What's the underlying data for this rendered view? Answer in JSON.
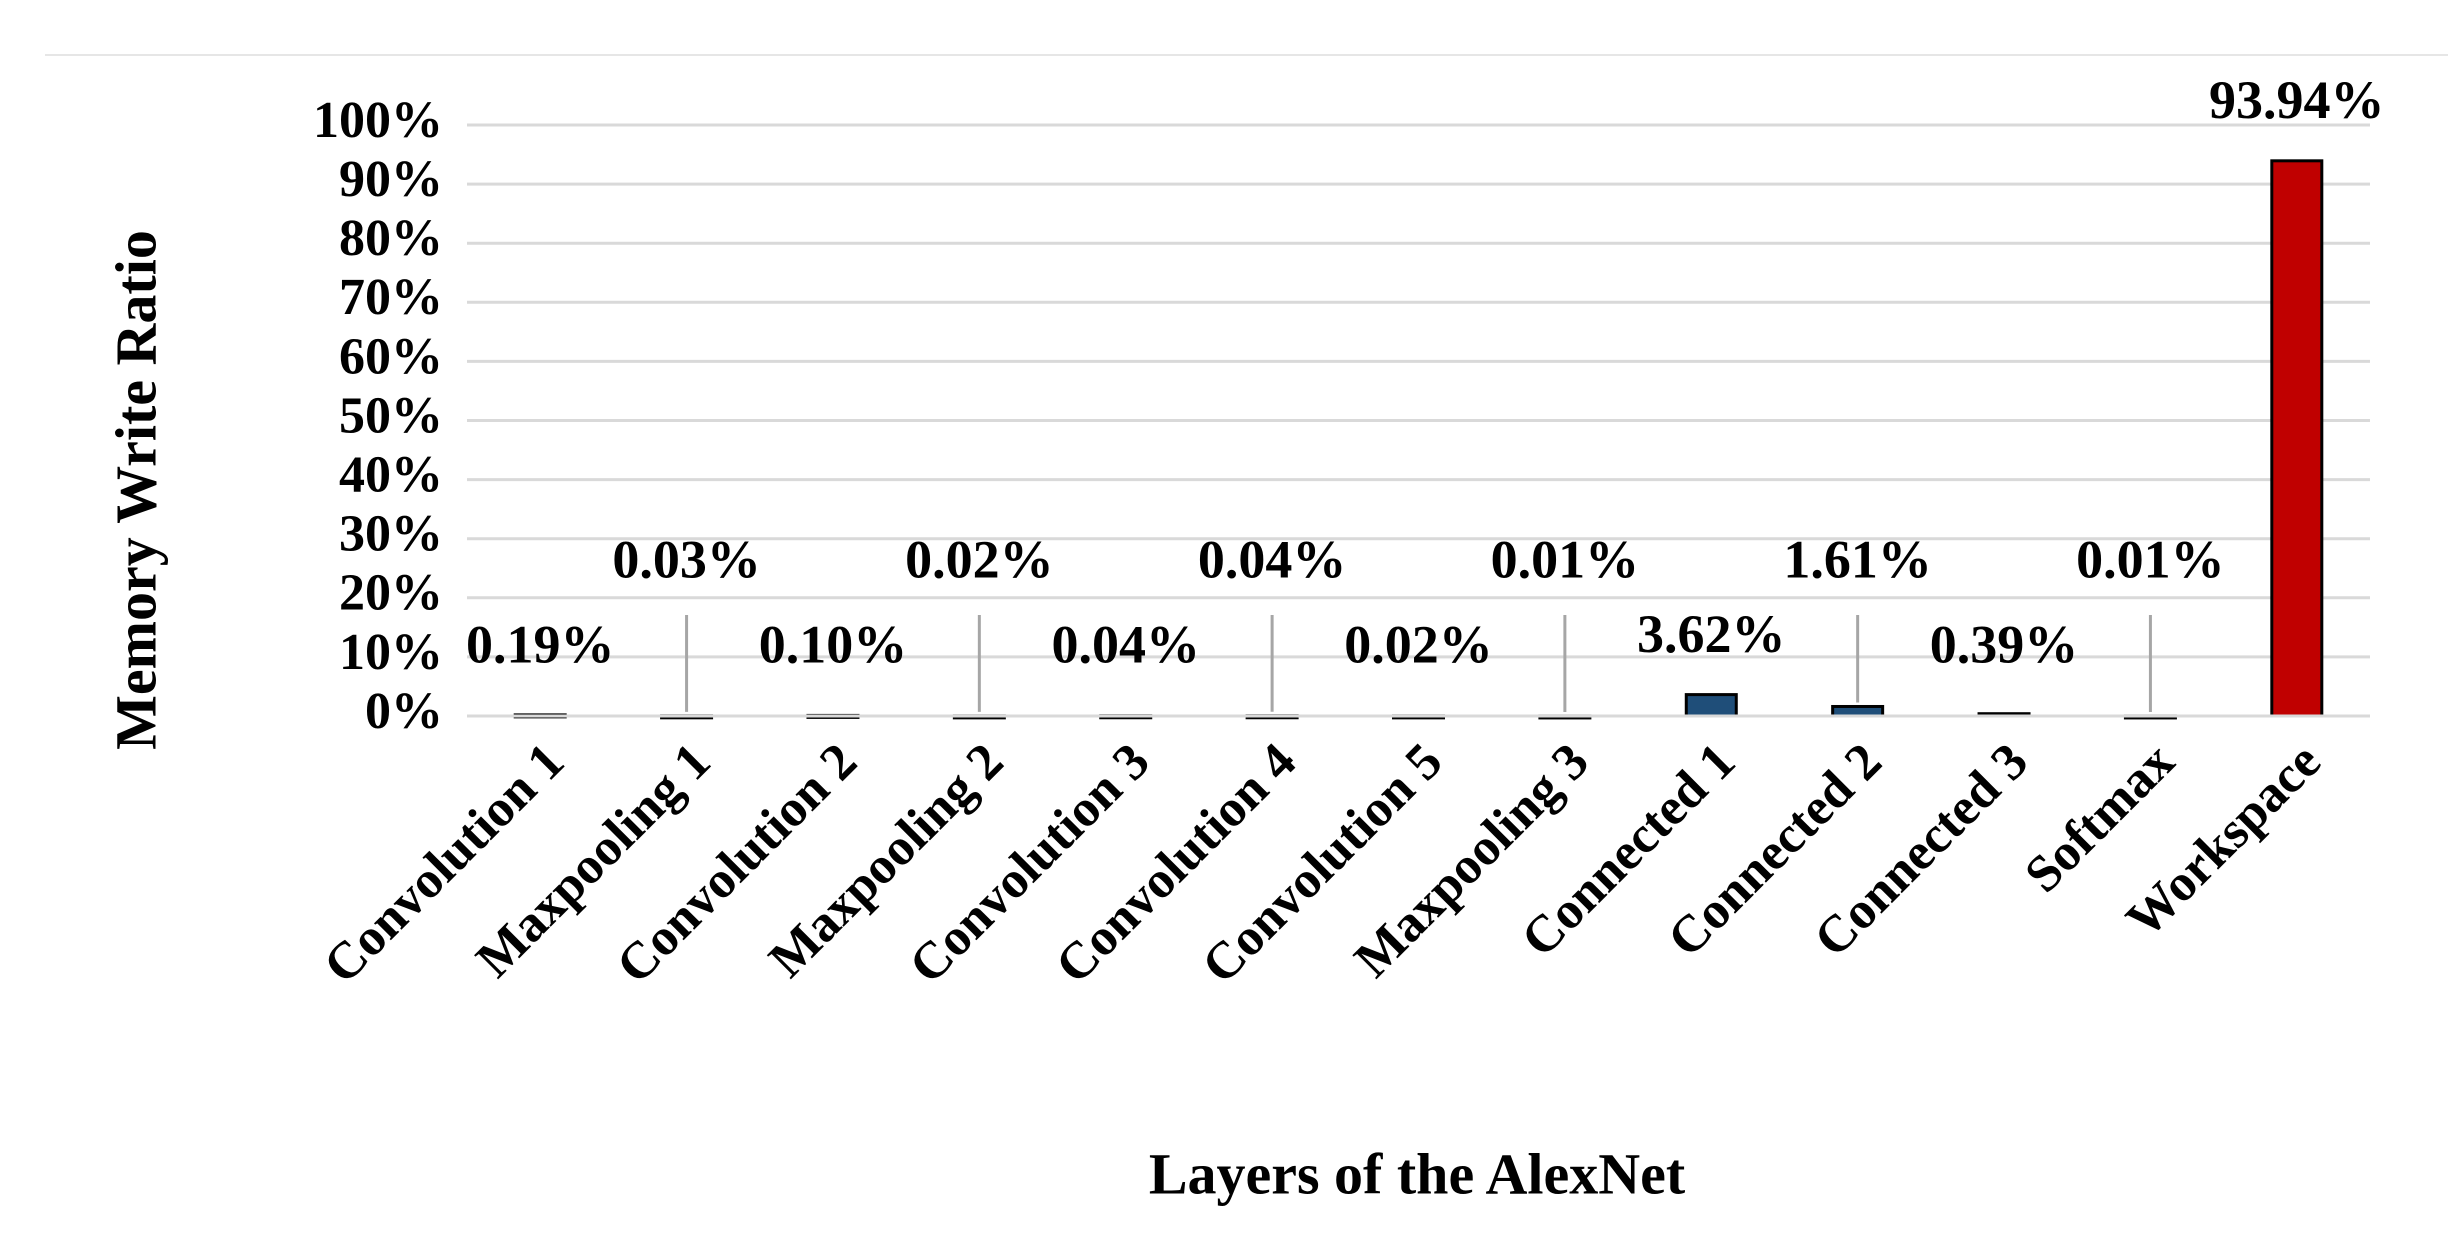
{
  "chart_data": {
    "type": "bar",
    "x_label": "Layers of the AlexNet",
    "y_label": "Memory Write Ratio",
    "categories": [
      "Convolution 1",
      "Maxpooling 1",
      "Convolution 2",
      "Maxpooling 2",
      "Convolution 3",
      "Convolution 4",
      "Convolution 5",
      "Maxpooling 3",
      "Connected 1",
      "Connected 2",
      "Connected 3",
      "Softmax",
      "Workspace"
    ],
    "values": [
      0.19,
      0.03,
      0.1,
      0.02,
      0.04,
      0.04,
      0.02,
      0.01,
      3.62,
      1.61,
      0.39,
      0.01,
      93.94
    ],
    "value_labels": [
      "0.19%",
      "0.03%",
      "0.10%",
      "0.02%",
      "0.04%",
      "0.04%",
      "0.02%",
      "0.01%",
      "3.62%",
      "1.61%",
      "0.39%",
      "0.01%",
      "93.94%"
    ],
    "colors": [
      "#1f4e79",
      "#1f4e79",
      "#1f4e79",
      "#1f4e79",
      "#1f4e79",
      "#1f4e79",
      "#1f4e79",
      "#1f4e79",
      "#1f4e79",
      "#1f4e79",
      "#1f4e79",
      "#1f4e79",
      "#c00000"
    ],
    "ylim": [
      0,
      100
    ],
    "yticks": [
      {
        "value": 0,
        "label": "0%"
      },
      {
        "value": 10,
        "label": "10%"
      },
      {
        "value": 20,
        "label": "20%"
      },
      {
        "value": 30,
        "label": "30%"
      },
      {
        "value": 40,
        "label": "40%"
      },
      {
        "value": 50,
        "label": "50%"
      },
      {
        "value": 60,
        "label": "60%"
      },
      {
        "value": 70,
        "label": "70%"
      },
      {
        "value": 80,
        "label": "80%"
      },
      {
        "value": 90,
        "label": "90%"
      },
      {
        "value": 100,
        "label": "100%"
      }
    ],
    "grid": true
  }
}
